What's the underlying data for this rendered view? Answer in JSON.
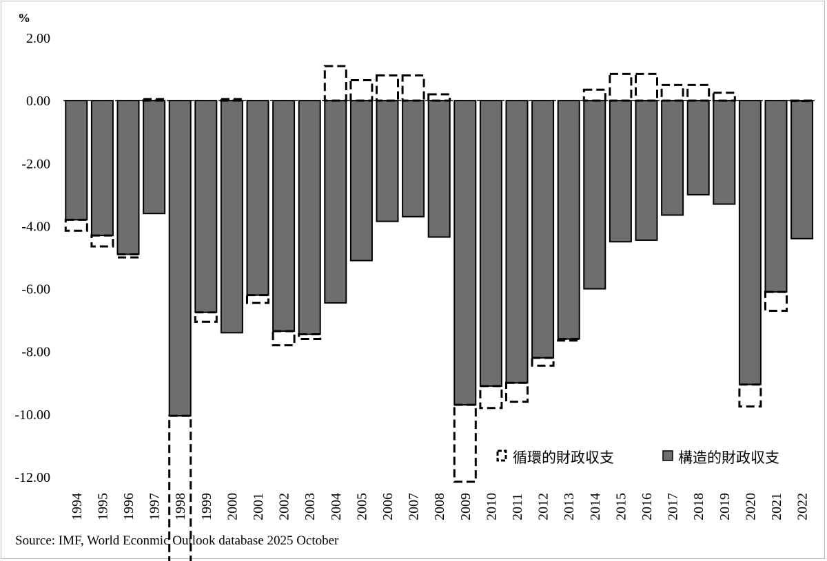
{
  "chart_data": {
    "type": "bar",
    "unit_label": "%",
    "categories": [
      "1994",
      "1995",
      "1996",
      "1997",
      "1998",
      "1999",
      "2000",
      "2001",
      "2002",
      "2003",
      "2004",
      "2005",
      "2006",
      "2007",
      "2008",
      "2009",
      "2010",
      "2011",
      "2012",
      "2013",
      "2014",
      "2015",
      "2016",
      "2017",
      "2018",
      "2019",
      "2020",
      "2021",
      "2022"
    ],
    "series": [
      {
        "name": "循環的財政収支",
        "style": "dashed-outline",
        "color": "#000000",
        "values": [
          -0.35,
          -0.35,
          -0.1,
          0.05,
          -4.85,
          -0.3,
          0.05,
          -0.25,
          -0.45,
          -0.15,
          1.1,
          0.65,
          0.8,
          0.8,
          0.2,
          -2.45,
          -0.7,
          -0.6,
          -0.25,
          -0.05,
          0.35,
          0.85,
          0.85,
          0.5,
          0.5,
          0.25,
          -0.7,
          -0.6,
          0.0
        ]
      },
      {
        "name": "構造的財政収支",
        "style": "filled",
        "color": "#6e6e6e",
        "values": [
          -3.8,
          -4.3,
          -4.9,
          -3.6,
          -10.05,
          -6.75,
          -7.4,
          -6.2,
          -7.35,
          -7.45,
          -6.45,
          -5.1,
          -3.85,
          -3.7,
          -4.35,
          -9.7,
          -9.1,
          -9.0,
          -8.2,
          -7.6,
          -6.0,
          -4.5,
          -4.45,
          -3.65,
          -3.0,
          -3.3,
          -9.05,
          -6.1,
          -4.4
        ]
      }
    ],
    "y_ticks": [
      "2.00",
      "0.00",
      "-2.00",
      "-4.00",
      "-6.00",
      "-8.00",
      "-10.00",
      "-12.00"
    ],
    "ylim": [
      -12,
      2
    ],
    "grid": false,
    "legend_position": "bottom-right",
    "source": "Source: IMF, World Econmic Outlook database 2025 October"
  }
}
